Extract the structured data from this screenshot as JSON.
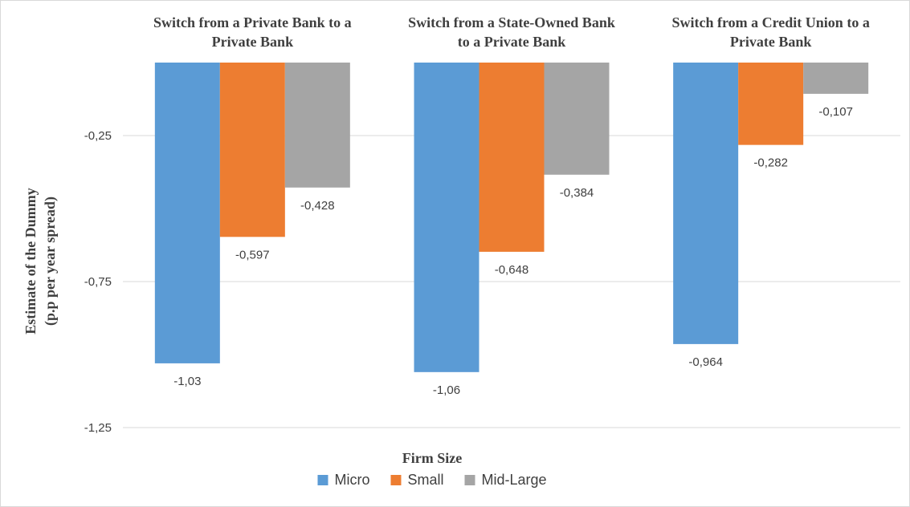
{
  "chart_data": {
    "type": "bar",
    "categories": [
      "Switch from a Private Bank to a Private Bank",
      "Switch from a State-Owned Bank to a Private Bank",
      "Switch from a Credit Union to a Private Bank"
    ],
    "category_title_lines": [
      [
        "Switch from a Private Bank to a",
        "Private Bank"
      ],
      [
        "Switch from a State-Owned Bank",
        "to a Private Bank"
      ],
      [
        "Switch from a Credit Union to a",
        "Private Bank"
      ]
    ],
    "series": [
      {
        "name": "Micro",
        "values": [
          -1.03,
          -1.06,
          -0.964
        ],
        "labels": [
          "-1,03",
          "-1,06",
          "-0,964"
        ],
        "color": "#5b9bd5"
      },
      {
        "name": "Small",
        "values": [
          -0.597,
          -0.648,
          -0.282
        ],
        "labels": [
          "-0,597",
          "-0,648",
          "-0,282"
        ],
        "color": "#ed7d31"
      },
      {
        "name": "Mid-Large",
        "values": [
          -0.428,
          -0.384,
          -0.107
        ],
        "labels": [
          "-0,428",
          "-0,384",
          "-0,107"
        ],
        "color": "#a5a5a5"
      }
    ],
    "ylabel_lines": [
      "Estimate of the Dummy",
      "(p.p  per year spread)"
    ],
    "xlabel": "Firm Size",
    "ylim": [
      -1.25,
      0
    ],
    "y_ticks": [
      -0.25,
      -0.75,
      -1.25
    ],
    "y_tick_labels": [
      "-0,25",
      "-0,75",
      "-1,25"
    ],
    "grid": true,
    "legend_position": "bottom"
  }
}
